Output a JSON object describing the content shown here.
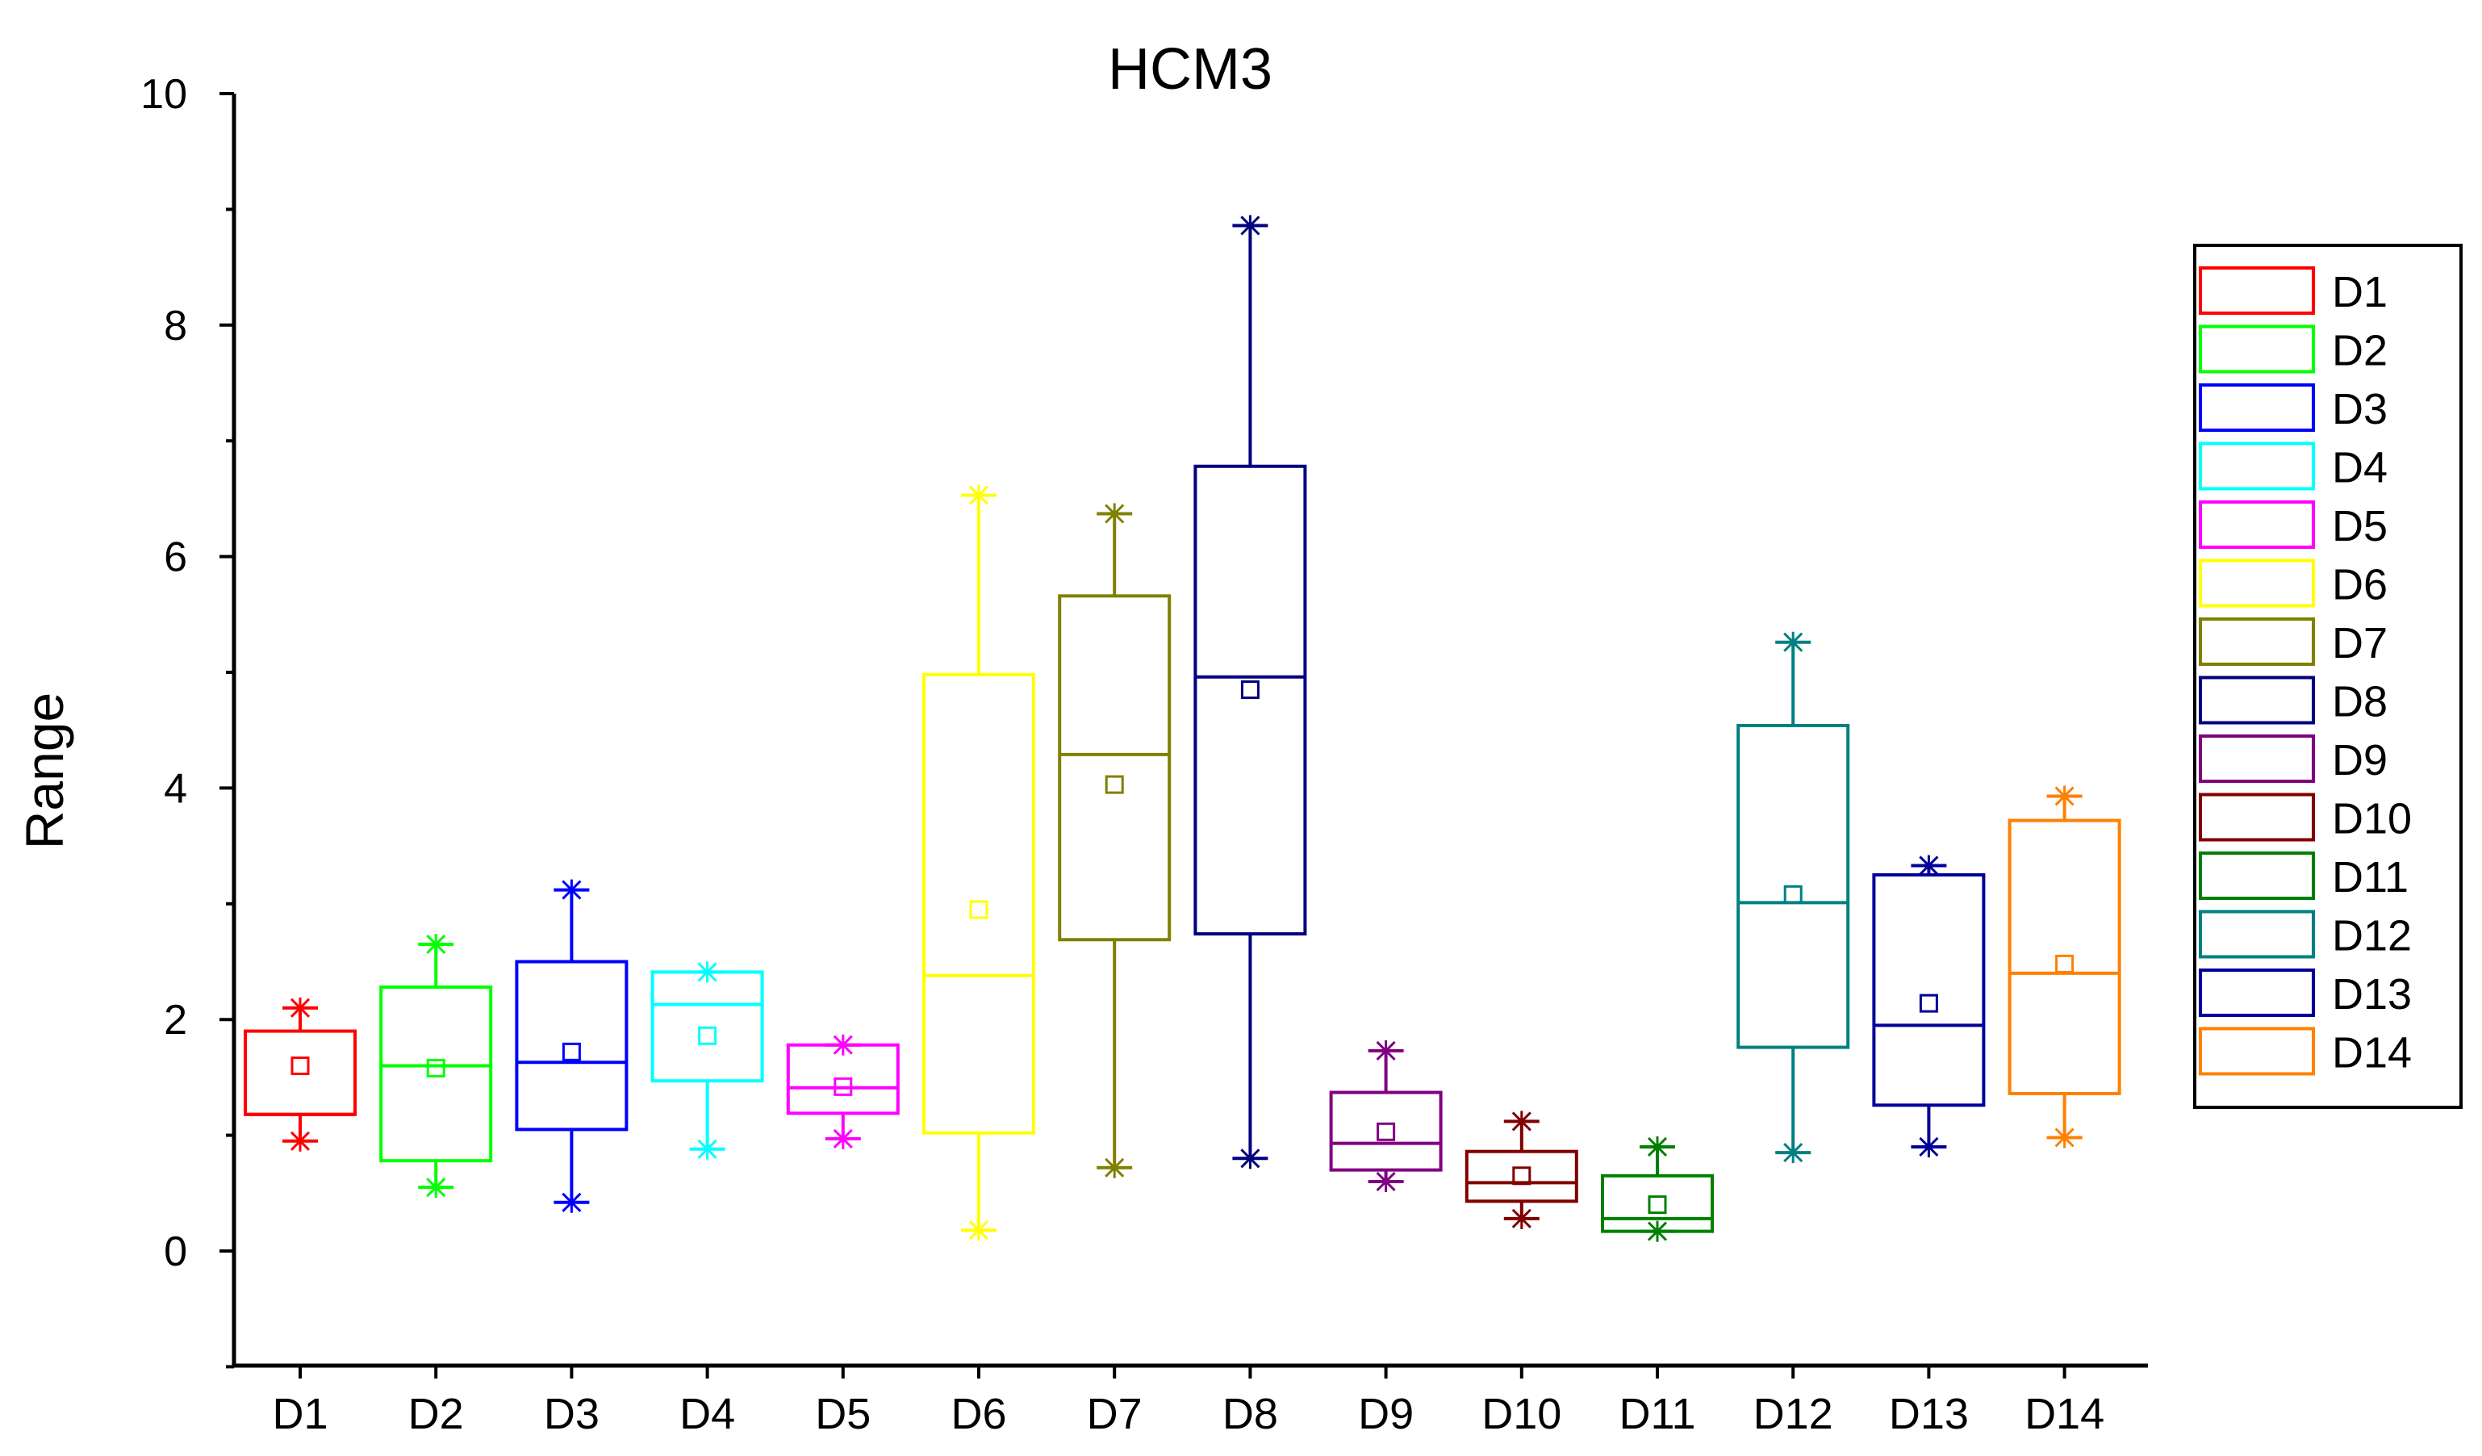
{
  "chart_data": {
    "type": "box",
    "title": "HCM3",
    "xlabel": "",
    "ylabel": "Range",
    "ylim": [
      -1,
      10
    ],
    "yticks": [
      0,
      2,
      4,
      6,
      8,
      10
    ],
    "categories": [
      "D1",
      "D2",
      "D3",
      "D4",
      "D5",
      "D6",
      "D7",
      "D8",
      "D9",
      "D10",
      "D11",
      "D12",
      "D13",
      "D14"
    ],
    "series": [
      {
        "name": "D1",
        "color": "#ff0000",
        "min": 0.95,
        "q1": 1.18,
        "median": 1.18,
        "q3": 1.9,
        "max": 2.1,
        "mean": 1.6
      },
      {
        "name": "D2",
        "color": "#00ff00",
        "min": 0.55,
        "q1": 0.78,
        "median": 1.6,
        "q3": 2.28,
        "max": 2.65,
        "mean": 1.58
      },
      {
        "name": "D3",
        "color": "#0000ff",
        "min": 0.42,
        "q1": 1.05,
        "median": 1.63,
        "q3": 2.5,
        "max": 3.12,
        "mean": 1.72
      },
      {
        "name": "D4",
        "color": "#00ffff",
        "min": 0.88,
        "q1": 1.47,
        "median": 2.13,
        "q3": 2.41,
        "max": 2.41,
        "mean": 1.86
      },
      {
        "name": "D5",
        "color": "#ff00ff",
        "min": 0.97,
        "q1": 1.19,
        "median": 1.41,
        "q3": 1.78,
        "max": 1.78,
        "mean": 1.42
      },
      {
        "name": "D6",
        "color": "#ffff00",
        "min": 0.18,
        "q1": 1.02,
        "median": 2.38,
        "q3": 4.98,
        "max": 6.53,
        "mean": 2.95
      },
      {
        "name": "D7",
        "color": "#808000",
        "min": 0.72,
        "q1": 2.69,
        "median": 4.29,
        "q3": 5.66,
        "max": 6.37,
        "mean": 4.03
      },
      {
        "name": "D8",
        "color": "#000080",
        "min": 0.8,
        "q1": 2.74,
        "median": 4.96,
        "q3": 6.78,
        "max": 8.86,
        "mean": 4.85
      },
      {
        "name": "D9",
        "color": "#800080",
        "min": 0.6,
        "q1": 0.7,
        "median": 0.93,
        "q3": 1.37,
        "max": 1.73,
        "mean": 1.03
      },
      {
        "name": "D10",
        "color": "#800000",
        "min": 0.28,
        "q1": 0.43,
        "median": 0.59,
        "q3": 0.86,
        "max": 1.12,
        "mean": 0.65
      },
      {
        "name": "D11",
        "color": "#008000",
        "min": 0.17,
        "q1": 0.17,
        "median": 0.28,
        "q3": 0.65,
        "max": 0.9,
        "mean": 0.4
      },
      {
        "name": "D12",
        "color": "#008080",
        "min": 0.85,
        "q1": 1.76,
        "median": 3.01,
        "q3": 4.54,
        "max": 5.26,
        "mean": 3.08
      },
      {
        "name": "D13",
        "color": "#000099",
        "min": 0.9,
        "q1": 1.26,
        "median": 1.95,
        "q3": 3.25,
        "max": 3.33,
        "mean": 2.14
      },
      {
        "name": "D14",
        "color": "#ff8000",
        "min": 0.98,
        "q1": 1.36,
        "median": 2.4,
        "q3": 3.72,
        "max": 3.93,
        "mean": 2.48
      }
    ],
    "legend_position": "right",
    "grid": false
  }
}
